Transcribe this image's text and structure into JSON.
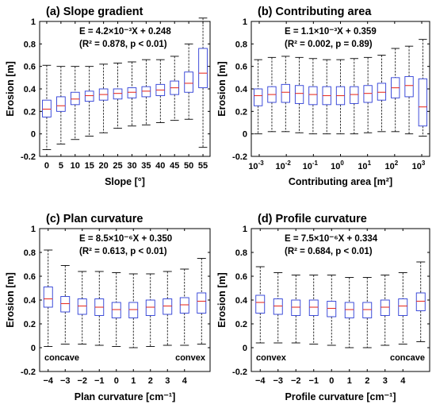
{
  "chart_data": [
    {
      "type": "boxplot",
      "title": "(a) Slope gradient",
      "xlabel": "Slope [°]",
      "ylabel": "Erosion [m]",
      "ylim": [
        -0.2,
        1.0
      ],
      "yticks": [
        "-0.2",
        "0",
        "0.2",
        "0.4",
        "0.6",
        "0.8",
        "1"
      ],
      "equation": "E = 4.2×10⁻³X + 0.248",
      "stats": "(R² = 0.878, p < 0.01)",
      "categories": [
        "0",
        "5",
        "10",
        "15",
        "20",
        "25",
        "30",
        "35",
        "40",
        "45",
        "50",
        "55"
      ],
      "boxes": [
        {
          "min": -0.14,
          "q1": 0.15,
          "median": 0.22,
          "q3": 0.3,
          "max": 0.61
        },
        {
          "min": -0.09,
          "q1": 0.2,
          "median": 0.25,
          "q3": 0.33,
          "max": 0.6
        },
        {
          "min": -0.05,
          "q1": 0.26,
          "median": 0.31,
          "q3": 0.37,
          "max": 0.6
        },
        {
          "min": -0.02,
          "q1": 0.29,
          "median": 0.34,
          "q3": 0.38,
          "max": 0.6
        },
        {
          "min": 0.01,
          "q1": 0.3,
          "median": 0.35,
          "q3": 0.4,
          "max": 0.62
        },
        {
          "min": 0.05,
          "q1": 0.31,
          "median": 0.36,
          "q3": 0.4,
          "max": 0.63
        },
        {
          "min": 0.07,
          "q1": 0.32,
          "median": 0.37,
          "q3": 0.41,
          "max": 0.64
        },
        {
          "min": 0.08,
          "q1": 0.33,
          "median": 0.38,
          "q3": 0.42,
          "max": 0.66
        },
        {
          "min": 0.1,
          "q1": 0.34,
          "median": 0.39,
          "q3": 0.44,
          "max": 0.66
        },
        {
          "min": 0.12,
          "q1": 0.35,
          "median": 0.41,
          "q3": 0.47,
          "max": 0.69
        },
        {
          "min": 0.13,
          "q1": 0.37,
          "median": 0.45,
          "q3": 0.55,
          "max": 0.8
        },
        {
          "min": -0.12,
          "q1": 0.41,
          "median": 0.54,
          "q3": 0.76,
          "max": 1.03
        }
      ]
    },
    {
      "type": "boxplot",
      "title": "(b) Contributing area",
      "xlabel": "Contributing area [m²]",
      "ylabel": "Erosion [m]",
      "ylim": [
        -0.2,
        1.0
      ],
      "yticks": [
        "-0.2",
        "0",
        "0.2",
        "0.4",
        "0.6",
        "0.8",
        "1"
      ],
      "equation": "E = 1.1×10⁻³X + 0.359",
      "stats": "(R² = 0.002, p = 0.89)",
      "x_scale": "log10",
      "xticks": [
        {
          "base": "10",
          "exp": "-3"
        },
        {
          "base": "10",
          "exp": "-2"
        },
        {
          "base": "10",
          "exp": "-1"
        },
        {
          "base": "10",
          "exp": "0"
        },
        {
          "base": "10",
          "exp": "1"
        },
        {
          "base": "10",
          "exp": "2"
        },
        {
          "base": "10",
          "exp": "3"
        }
      ],
      "boxes": [
        {
          "min": 0.0,
          "q1": 0.25,
          "median": 0.34,
          "q3": 0.4,
          "max": 0.66
        },
        {
          "min": 0.02,
          "q1": 0.28,
          "median": 0.35,
          "q3": 0.42,
          "max": 0.68
        },
        {
          "min": 0.02,
          "q1": 0.28,
          "median": 0.37,
          "q3": 0.44,
          "max": 0.69
        },
        {
          "min": 0.01,
          "q1": 0.27,
          "median": 0.36,
          "q3": 0.43,
          "max": 0.68
        },
        {
          "min": 0.0,
          "q1": 0.26,
          "median": 0.35,
          "q3": 0.42,
          "max": 0.67
        },
        {
          "min": 0.0,
          "q1": 0.26,
          "median": 0.34,
          "q3": 0.42,
          "max": 0.66
        },
        {
          "min": 0.0,
          "q1": 0.26,
          "median": 0.34,
          "q3": 0.42,
          "max": 0.66
        },
        {
          "min": 0.0,
          "q1": 0.27,
          "median": 0.35,
          "q3": 0.42,
          "max": 0.67
        },
        {
          "min": 0.01,
          "q1": 0.28,
          "median": 0.36,
          "q3": 0.43,
          "max": 0.68
        },
        {
          "min": 0.02,
          "q1": 0.3,
          "median": 0.37,
          "q3": 0.45,
          "max": 0.7
        },
        {
          "min": 0.02,
          "q1": 0.32,
          "median": 0.41,
          "q3": 0.5,
          "max": 0.76
        },
        {
          "min": 0.0,
          "q1": 0.33,
          "median": 0.43,
          "q3": 0.51,
          "max": 0.78
        },
        {
          "min": -0.02,
          "q1": 0.07,
          "median": 0.24,
          "q3": 0.49,
          "max": 0.84
        }
      ]
    },
    {
      "type": "boxplot",
      "title": "(c) Plan curvature",
      "xlabel": "Plan curvature [cm⁻¹]",
      "ylabel": "Erosion [m]",
      "ylim": [
        -0.2,
        1.0
      ],
      "yticks": [
        "-0.2",
        "0",
        "0.2",
        "0.4",
        "0.6",
        "0.8",
        "1"
      ],
      "equation": "E = 8.5×10⁻⁶X + 0.350",
      "stats": "(R² = 0.613, p < 0.01)",
      "left_note": "concave",
      "right_note": "convex",
      "categories": [
        "−4",
        "−3",
        "−2",
        "−1",
        "0",
        "1",
        "2",
        "3",
        "4"
      ],
      "boxes": [
        {
          "min": 0.01,
          "q1": 0.34,
          "median": 0.41,
          "q3": 0.51,
          "max": 0.82
        },
        {
          "min": 0.03,
          "q1": 0.3,
          "median": 0.37,
          "q3": 0.43,
          "max": 0.69
        },
        {
          "min": 0.03,
          "q1": 0.28,
          "median": 0.35,
          "q3": 0.41,
          "max": 0.64
        },
        {
          "min": 0.02,
          "q1": 0.27,
          "median": 0.34,
          "q3": 0.41,
          "max": 0.64
        },
        {
          "min": 0.01,
          "q1": 0.25,
          "median": 0.32,
          "q3": 0.38,
          "max": 0.63
        },
        {
          "min": 0.0,
          "q1": 0.25,
          "median": 0.32,
          "q3": 0.38,
          "max": 0.62
        },
        {
          "min": 0.01,
          "q1": 0.27,
          "median": 0.34,
          "q3": 0.4,
          "max": 0.62
        },
        {
          "min": 0.02,
          "q1": 0.28,
          "median": 0.35,
          "q3": 0.41,
          "max": 0.64
        },
        {
          "min": 0.02,
          "q1": 0.29,
          "median": 0.36,
          "q3": 0.42,
          "max": 0.66
        },
        {
          "min": 0.03,
          "q1": 0.29,
          "median": 0.39,
          "q3": 0.46,
          "max": 0.75
        }
      ]
    },
    {
      "type": "boxplot",
      "title": "(d) Profile curvature",
      "xlabel": "Profile curvature [cm⁻¹]",
      "ylabel": "Erosion [m]",
      "ylim": [
        -0.2,
        1.0
      ],
      "yticks": [
        "-0.2",
        "0",
        "0.2",
        "0.4",
        "0.6",
        "0.8",
        "1"
      ],
      "equation": "E = 7.5×10⁻⁶X + 0.334",
      "stats": "(R² = 0.684, p < 0.01)",
      "left_note": "convex",
      "right_note": "concave",
      "categories": [
        "−4",
        "−3",
        "−2",
        "−1",
        "0",
        "1",
        "2",
        "3",
        "4"
      ],
      "boxes": [
        {
          "min": 0.04,
          "q1": 0.29,
          "median": 0.38,
          "q3": 0.44,
          "max": 0.68
        },
        {
          "min": 0.04,
          "q1": 0.28,
          "median": 0.35,
          "q3": 0.41,
          "max": 0.63
        },
        {
          "min": 0.04,
          "q1": 0.27,
          "median": 0.34,
          "q3": 0.4,
          "max": 0.61
        },
        {
          "min": 0.03,
          "q1": 0.27,
          "median": 0.34,
          "q3": 0.4,
          "max": 0.61
        },
        {
          "min": 0.02,
          "q1": 0.26,
          "median": 0.33,
          "q3": 0.39,
          "max": 0.61
        },
        {
          "min": 0.0,
          "q1": 0.25,
          "median": 0.32,
          "q3": 0.38,
          "max": 0.59
        },
        {
          "min": 0.0,
          "q1": 0.25,
          "median": 0.32,
          "q3": 0.38,
          "max": 0.59
        },
        {
          "min": 0.02,
          "q1": 0.27,
          "median": 0.34,
          "q3": 0.4,
          "max": 0.61
        },
        {
          "min": 0.03,
          "q1": 0.27,
          "median": 0.35,
          "q3": 0.41,
          "max": 0.63
        },
        {
          "min": 0.05,
          "q1": 0.31,
          "median": 0.39,
          "q3": 0.46,
          "max": 0.72
        }
      ]
    }
  ],
  "colors": {
    "box": "#2b3bd6",
    "median": "#e8332a",
    "whisker": "#000000",
    "axis": "#000000"
  }
}
